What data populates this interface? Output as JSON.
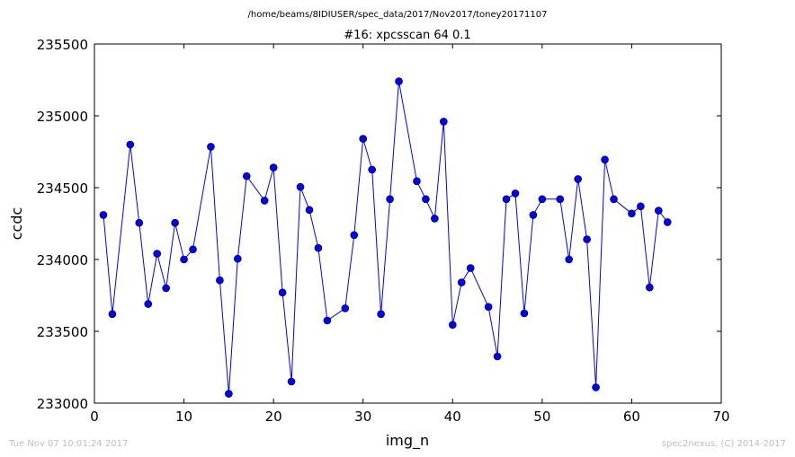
{
  "footer": {
    "timestamp": "Tue Nov 07 10:01:24 2017",
    "credit": "spec2nexus, (C) 2014-2017"
  },
  "colors": {
    "series": "#0000ff",
    "axes": "#000000",
    "background": "#ffffff",
    "footer": "#bdbdbd"
  },
  "chart_data": {
    "type": "line",
    "suptitle": "/home/beams/8IDIUSER/spec_data/2017/Nov2017/toney20171107",
    "title": "#16: xpcsscan 64 0.1",
    "xlabel": "img_n",
    "ylabel": "ccdc",
    "xlim": [
      0,
      70
    ],
    "ylim": [
      233000,
      235500
    ],
    "xticks": [
      0,
      10,
      20,
      30,
      40,
      50,
      60,
      70
    ],
    "yticks": [
      233000,
      233500,
      234000,
      234500,
      235000,
      235500
    ],
    "grid": false,
    "marker": "circle",
    "series": [
      {
        "x": [
          1,
          2,
          4,
          5,
          6,
          7,
          8,
          9,
          10,
          11,
          13,
          14,
          15,
          16,
          17,
          19,
          20,
          21,
          22,
          23,
          24,
          25,
          26,
          28,
          29,
          30,
          31,
          32,
          33,
          34,
          36,
          37,
          38,
          39,
          40,
          41,
          42,
          44,
          45,
          46,
          47,
          48,
          49,
          50,
          52,
          53,
          54,
          55,
          56,
          57,
          58,
          60,
          61,
          62,
          63,
          64
        ],
        "y": [
          234310,
          233620,
          234800,
          234255,
          233690,
          234040,
          233800,
          234255,
          234000,
          234070,
          234785,
          233855,
          233065,
          234005,
          234580,
          234410,
          234640,
          233770,
          233150,
          234505,
          234345,
          234080,
          233575,
          233660,
          234170,
          234840,
          234625,
          233620,
          234420,
          235240,
          234545,
          234420,
          234285,
          234960,
          233545,
          233840,
          233940,
          233670,
          233325,
          234420,
          234460,
          233625,
          234310,
          234420,
          234420,
          234000,
          234560,
          234140,
          233110,
          234695,
          234420,
          234320,
          234370,
          233805,
          234340,
          234260
        ]
      }
    ]
  }
}
